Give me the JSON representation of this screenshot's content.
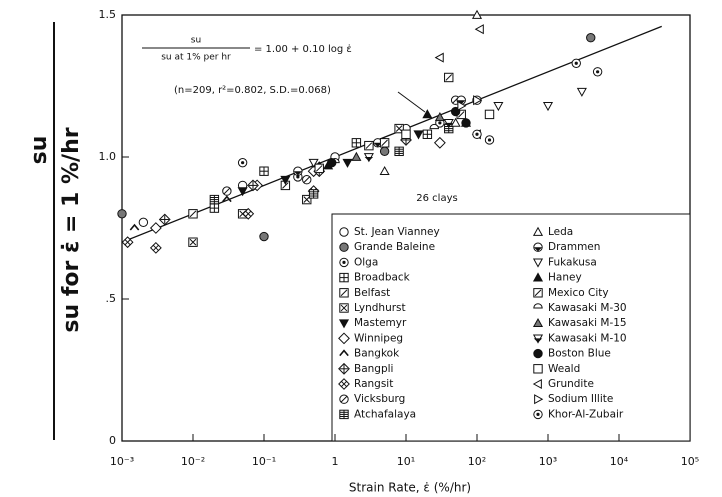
{
  "chart_data": {
    "type": "scatter",
    "xlabel": "Strain Rate, ε̇ (%/hr)",
    "ylabel_numerator": "su",
    "ylabel_denominator": "su for ε̇ = 1 %/hr",
    "equation_numerator": "su",
    "equation_denominator": "su at 1% per hr",
    "equation_rhs": "= 1.00 + 0.10 log ε̇",
    "stats": "(n=209, r²=0.802, S.D.=0.068)",
    "legend_title": "26 clays",
    "log_x": true,
    "xlim": [
      0.001,
      100000
    ],
    "xticks": [
      {
        "value": 0.001,
        "label": "10⁻³"
      },
      {
        "value": 0.01,
        "label": "10⁻²"
      },
      {
        "value": 0.1,
        "label": "10⁻¹"
      },
      1,
      {
        "value": 10,
        "label": "10¹"
      },
      {
        "value": 100,
        "label": "10²"
      },
      {
        "value": 1000,
        "label": "10³"
      },
      {
        "value": 10000,
        "label": "10⁴"
      },
      {
        "value": 100000,
        "label": "10⁵"
      }
    ],
    "ylim": [
      0,
      1.5
    ],
    "yticks": [
      0,
      {
        "value": 0.5,
        "label": ".5"
      },
      {
        "value": 1,
        "label": "1.0"
      },
      1.5
    ],
    "fit_line": {
      "x": [
        0.001,
        40000
      ],
      "y": [
        0.7,
        1.46
      ]
    },
    "series": [
      {
        "name": "St. Jean Vianney",
        "marker": "circle-open",
        "x": [
          0.002,
          0.05,
          1,
          10,
          100
        ],
        "y": [
          0.77,
          0.9,
          1.0,
          1.1,
          1.2
        ]
      },
      {
        "name": "Grande Baleine",
        "marker": "circle-gray",
        "x": [
          0.001,
          0.1,
          5,
          4000
        ],
        "y": [
          0.8,
          0.72,
          1.02,
          1.42
        ]
      },
      {
        "name": "Olga",
        "marker": "circle-dot",
        "x": [
          0.05,
          0.3,
          30,
          2500,
          5000
        ],
        "y": [
          0.98,
          0.93,
          1.12,
          1.33,
          1.3
        ]
      },
      {
        "name": "Broadback",
        "marker": "square-plus",
        "x": [
          0.02,
          0.1,
          2,
          20
        ],
        "y": [
          0.82,
          0.95,
          1.05,
          1.08
        ]
      },
      {
        "name": "Belfast",
        "marker": "square-slash",
        "x": [
          0.01,
          0.2,
          3,
          60
        ],
        "y": [
          0.8,
          0.9,
          1.04,
          1.15
        ]
      },
      {
        "name": "Lyndhurst",
        "marker": "square-x",
        "x": [
          0.01,
          0.05,
          0.4,
          8
        ],
        "y": [
          0.7,
          0.8,
          0.85,
          1.1
        ]
      },
      {
        "name": "Mastemyr",
        "marker": "tridown-filled",
        "x": [
          0.05,
          0.2,
          1.5,
          15
        ],
        "y": [
          0.88,
          0.92,
          0.98,
          1.08
        ]
      },
      {
        "name": "Winnipeg",
        "marker": "diamond-open",
        "x": [
          0.003,
          0.08,
          0.5,
          30
        ],
        "y": [
          0.75,
          0.9,
          0.95,
          1.05
        ]
      },
      {
        "name": "Bangkok",
        "marker": "caret-open",
        "x": [
          0.0015,
          0.03,
          0.6
        ],
        "y": [
          0.75,
          0.85,
          0.97
        ]
      },
      {
        "name": "Bangpli",
        "marker": "diamond-plus",
        "x": [
          0.004,
          0.07,
          0.6,
          10
        ],
        "y": [
          0.78,
          0.9,
          0.95,
          1.06
        ]
      },
      {
        "name": "Rangsit",
        "marker": "diamond-x",
        "x": [
          0.0012,
          0.003,
          0.06,
          0.5
        ],
        "y": [
          0.7,
          0.68,
          0.8,
          0.88
        ]
      },
      {
        "name": "Vicksburg",
        "marker": "circle-slash",
        "x": [
          0.03,
          0.4,
          5,
          50
        ],
        "y": [
          0.88,
          0.92,
          1.05,
          1.2
        ]
      },
      {
        "name": "Atchafalaya",
        "marker": "square-grid",
        "x": [
          0.02,
          0.5,
          8,
          40
        ],
        "y": [
          0.85,
          0.87,
          1.02,
          1.1
        ]
      },
      {
        "name": "Leda",
        "marker": "triup-open",
        "x": [
          5,
          50,
          100
        ],
        "y": [
          0.95,
          1.12,
          1.5
        ]
      },
      {
        "name": "Drammen",
        "marker": "circle-half",
        "x": [
          0.3,
          4,
          60
        ],
        "y": [
          0.95,
          1.05,
          1.2
        ]
      },
      {
        "name": "Fukakusa",
        "marker": "tridown-open",
        "x": [
          0.5,
          200,
          1000,
          3000
        ],
        "y": [
          0.98,
          1.18,
          1.18,
          1.23
        ]
      },
      {
        "name": "Haney",
        "marker": "triup-filled",
        "x": [
          0.8,
          20,
          70
        ],
        "y": [
          0.97,
          1.15,
          1.12
        ]
      },
      {
        "name": "Mexico City",
        "marker": "square-slash",
        "x": [
          0.6,
          5,
          40
        ],
        "y": [
          0.96,
          1.05,
          1.28
        ]
      },
      {
        "name": "Kawasaki M-30",
        "marker": "semi-open",
        "x": [
          1,
          25
        ],
        "y": [
          0.98,
          1.1
        ]
      },
      {
        "name": "Kawasaki M-15",
        "marker": "triup-gray",
        "x": [
          2,
          30
        ],
        "y": [
          1.0,
          1.14
        ]
      },
      {
        "name": "Kawasaki M-10",
        "marker": "tridown-half",
        "x": [
          3,
          40
        ],
        "y": [
          1.0,
          1.12
        ]
      },
      {
        "name": "Boston Blue",
        "marker": "circle-filled",
        "x": [
          0.9,
          50,
          70
        ],
        "y": [
          0.98,
          1.16,
          1.12
        ]
      },
      {
        "name": "Weald",
        "marker": "square-open",
        "x": [
          10,
          150
        ],
        "y": [
          1.08,
          1.15
        ]
      },
      {
        "name": "Grundite",
        "marker": "trileft-open",
        "x": [
          30,
          100,
          110
        ],
        "y": [
          1.35,
          1.08,
          1.45
        ]
      },
      {
        "name": "Sodium Illite",
        "marker": "triright-open",
        "x": [
          60,
          100
        ],
        "y": [
          1.18,
          1.2
        ]
      },
      {
        "name": "Khor-Al-Zubair",
        "marker": "circle-dot",
        "x": [
          100,
          150
        ],
        "y": [
          1.08,
          1.06
        ]
      }
    ]
  }
}
